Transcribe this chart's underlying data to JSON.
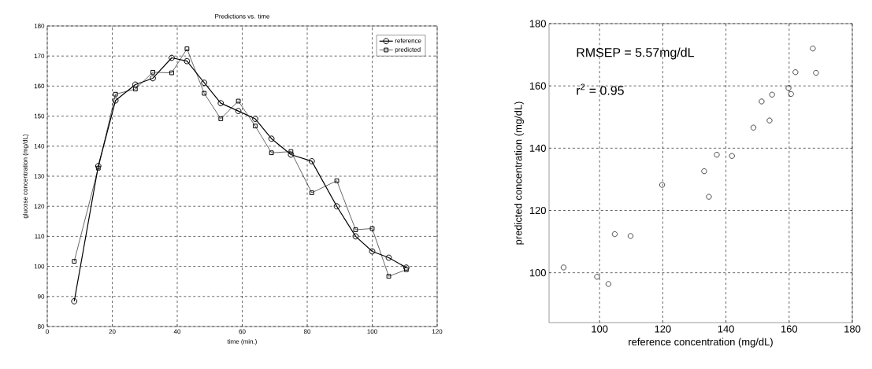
{
  "chart_data": [
    {
      "type": "line",
      "title": "Predictions vs. time",
      "xlabel": "time (min.)",
      "ylabel": "glucose concentration (mg/dL)",
      "x": [
        8.3,
        15.7,
        21,
        27.1,
        32.5,
        38.3,
        43,
        48.3,
        53.4,
        58.8,
        64,
        69,
        75,
        81.4,
        89.1,
        94.9,
        100,
        105.1,
        110.5
      ],
      "series": [
        {
          "name": "reference",
          "color": "#000000",
          "marker": "circle",
          "values": [
            88.4,
            133.4,
            155.2,
            160.5,
            162.6,
            169.4,
            168.3,
            161.1,
            154.3,
            151.7,
            149.1,
            142.5,
            137.2,
            135,
            120,
            110,
            105,
            102.9,
            99.6
          ]
        },
        {
          "name": "predicted",
          "color": "#000000",
          "marker": "square",
          "values": [
            101.7,
            132.7,
            157.3,
            159,
            164.6,
            164.4,
            172.4,
            157.6,
            149.1,
            155,
            146.7,
            137.8,
            138.2,
            124.5,
            128.5,
            112.2,
            112.6,
            96.7,
            98.9
          ]
        }
      ],
      "xlim": [
        0,
        120
      ],
      "xticks": [
        0,
        20,
        40,
        60,
        80,
        100,
        120
      ],
      "ylim": [
        80,
        180
      ],
      "yticks": [
        80,
        90,
        100,
        110,
        120,
        130,
        140,
        150,
        160,
        170,
        180
      ],
      "grid": true,
      "legend": "top right"
    },
    {
      "type": "scatter",
      "xlabel": "reference concentration (mg/dL)",
      "ylabel": "predicted concentration (mg/dL)",
      "x": [
        88.6,
        99.2,
        102.8,
        104.8,
        109.8,
        119.8,
        133.1,
        134.6,
        137.1,
        141.9,
        148.7,
        151.3,
        153.8,
        154.6,
        159.8,
        160.6,
        162,
        167.5,
        168.5
      ],
      "values": [
        101.7,
        98.7,
        96.4,
        112.4,
        111.8,
        128.2,
        132.6,
        124.4,
        137.9,
        137.5,
        146.6,
        155,
        148.9,
        157.2,
        159.3,
        157.4,
        164.4,
        172,
        164.2
      ],
      "color": "#000000",
      "marker": "circle",
      "annotations": [
        "RMSEP = 5.57mg/dL",
        "r$^{2}$ = 0.95"
      ],
      "xlim": [
        84,
        180
      ],
      "xticks": [
        100,
        120,
        140,
        160,
        180
      ],
      "ylim": [
        84,
        180
      ],
      "yticks": [
        100,
        120,
        140,
        160,
        180
      ],
      "grid": true
    }
  ]
}
